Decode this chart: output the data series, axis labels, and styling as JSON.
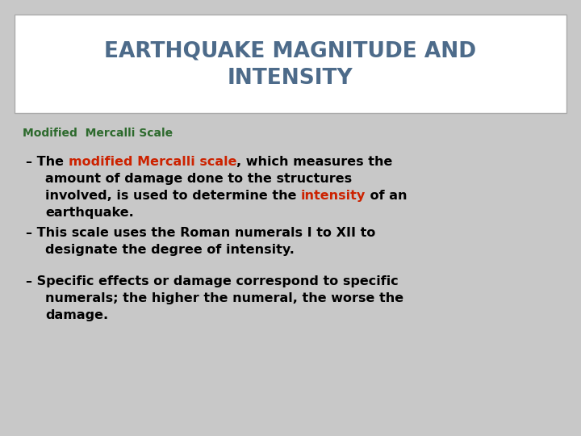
{
  "title_line1": "EARTHQUAKE MAGNITUDE AND",
  "title_line2": "INTENSITY",
  "title_color": "#4d6b8a",
  "title_bg": "#ffffff",
  "body_bg": "#c8c8c8",
  "subtitle": "Modified  Mercalli Scale",
  "subtitle_color": "#2d6a2d",
  "font_size_title": 19,
  "font_size_subtitle": 10,
  "font_size_body": 11.5,
  "border_color": "#aaaaaa",
  "red_color": "#cc2200",
  "black_color": "#000000"
}
